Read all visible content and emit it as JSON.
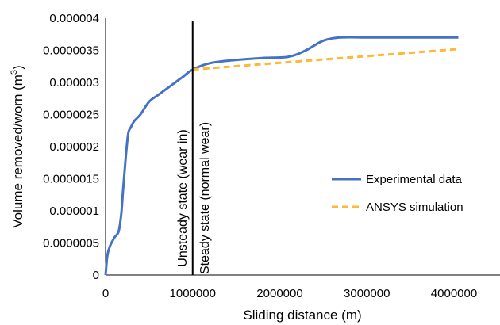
{
  "chart_data": {
    "type": "line",
    "title": "",
    "xlabel": "Sliding distance (m)",
    "ylabel_main": "Volume removed/worn (m",
    "ylabel_sup": "3",
    "ylabel_close": ")",
    "xlim": [
      0,
      4000000
    ],
    "ylim": [
      0,
      4e-06
    ],
    "x_ticks": [
      {
        "value": 0,
        "label": "0"
      },
      {
        "value": 1000000,
        "label": "1000000"
      },
      {
        "value": 2000000,
        "label": "2000000"
      },
      {
        "value": 3000000,
        "label": "3000000"
      },
      {
        "value": 4000000,
        "label": "4000000"
      }
    ],
    "y_ticks": [
      {
        "value": 0,
        "label": "0"
      },
      {
        "value": 5e-07,
        "label": "0.0000005"
      },
      {
        "value": 1e-06,
        "label": "0.000001"
      },
      {
        "value": 1.5e-06,
        "label": "0.0000015"
      },
      {
        "value": 2e-06,
        "label": "0.000002"
      },
      {
        "value": 2.5e-06,
        "label": "0.0000025"
      },
      {
        "value": 3e-06,
        "label": "0.000003"
      },
      {
        "value": 3.5e-06,
        "label": "0.0000035"
      },
      {
        "value": 4e-06,
        "label": "0.000004"
      }
    ],
    "grid": false,
    "legend_position": "right",
    "series": [
      {
        "name": "Experimental data",
        "color": "#4472c4",
        "dash": "solid",
        "x": [
          0,
          20000,
          50000,
          100000,
          150000,
          180000,
          200000,
          230000,
          260000,
          290000,
          330000,
          400000,
          500000,
          600000,
          700000,
          800000,
          900000,
          1000000,
          1200000,
          1500000,
          1800000,
          2100000,
          2300000,
          2500000,
          2700000,
          3000000,
          3300000,
          3600000,
          3800000,
          4050000
        ],
        "y": [
          0,
          3e-07,
          4.5e-07,
          5.8e-07,
          6.8e-07,
          9.5e-07,
          1.3e-06,
          1.8e-06,
          2.2e-06,
          2.3e-06,
          2.4e-06,
          2.5e-06,
          2.7e-06,
          2.8e-06,
          2.9e-06,
          3e-06,
          3.1e-06,
          3.2e-06,
          3.3e-06,
          3.35e-06,
          3.38e-06,
          3.4e-06,
          3.5e-06,
          3.65e-06,
          3.7e-06,
          3.7e-06,
          3.7e-06,
          3.7e-06,
          3.7e-06,
          3.7e-06
        ]
      },
      {
        "name": "ANSYS simulation",
        "color": "#ffb833",
        "dash": "dashed",
        "x": [
          1000000,
          4050000
        ],
        "y": [
          3.2e-06,
          3.52e-06
        ]
      }
    ],
    "vline": {
      "x": 1000000,
      "color": "#000000"
    },
    "annotations": {
      "left": "Unsteady state (wear in)",
      "right": "Steady state (normal wear)"
    }
  }
}
